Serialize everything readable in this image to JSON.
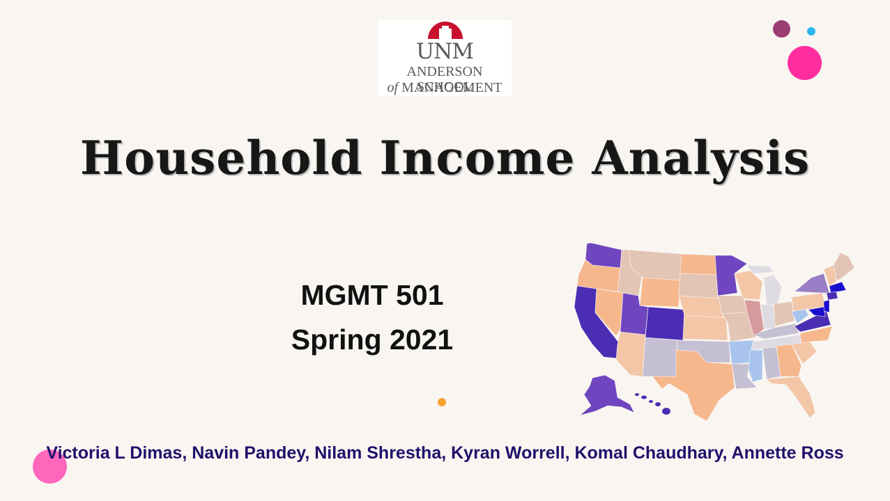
{
  "logo": {
    "line1": "UNM",
    "line2": "ANDERSON SCHOOL",
    "line3": "of MANAGEMENT"
  },
  "title": "Household Income Analysis",
  "course": {
    "code": "MGMT 501",
    "term": "Spring 2021"
  },
  "authors": "Victoria L Dimas, Navin Pandey, Nilam Shrestha, Kyran Worrell, Komal Chaudhary, Annette Ross",
  "map_colors": {
    "dark_purple": "#4b2db3",
    "purple": "#6f45c0",
    "light_purple": "#9b7fc6",
    "peach": "#f6b78d",
    "light_peach": "#f3c6a8",
    "tan": "#e3c5b5",
    "gray_blue": "#c5bfd3",
    "rose": "#d79a9c",
    "light_blue": "#a8c4ee",
    "deep_blue": "#1a0fcf",
    "pale_gray": "#dedbe2"
  }
}
